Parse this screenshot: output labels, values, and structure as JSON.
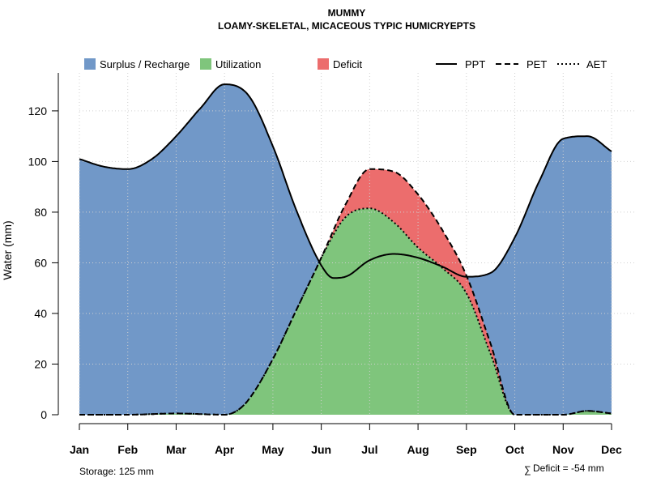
{
  "chart_data": {
    "type": "area",
    "title": "MUMMY",
    "subtitle": "LOAMY-SKELETAL, MICACEOUS TYPIC HUMICRYEPTS",
    "ylabel": "Water (mm)",
    "xlabel": "",
    "ylim": [
      0,
      135
    ],
    "yticks": [
      0,
      20,
      40,
      60,
      80,
      100,
      120
    ],
    "categories": [
      "Jan",
      "Feb",
      "Mar",
      "Apr",
      "May",
      "Jun",
      "Jul",
      "Aug",
      "Sep",
      "Oct",
      "Nov",
      "Dec"
    ],
    "grid": true,
    "series": [
      {
        "name": "PPT",
        "line_style": "solid",
        "x": [
          0,
          0.5,
          1,
          1.5,
          2,
          2.5,
          3,
          3.5,
          4,
          4.5,
          5,
          5.25,
          5.5,
          6,
          6.5,
          7,
          7.5,
          8,
          8.5,
          9,
          9.5,
          10,
          10.5,
          11
        ],
        "values": [
          101,
          98,
          97,
          101,
          110,
          121,
          130.5,
          126,
          106,
          80,
          59,
          54,
          54.5,
          61,
          63.5,
          62,
          58.5,
          54.5,
          56,
          70,
          92,
          109,
          110,
          104
        ]
      },
      {
        "name": "PET",
        "line_style": "dashed",
        "x": [
          0,
          1,
          2,
          3,
          3.25,
          3.5,
          4,
          4.5,
          5,
          5.5,
          6,
          6.5,
          7,
          7.5,
          8,
          8.5,
          9,
          9.5,
          10,
          10.5,
          11
        ],
        "values": [
          0,
          0,
          0.5,
          0,
          1.5,
          6,
          22,
          42,
          62,
          83,
          97,
          96,
          87,
          73,
          55,
          28,
          0,
          0,
          0,
          1.5,
          0.5
        ]
      },
      {
        "name": "AET",
        "line_style": "dotted",
        "x": [
          0,
          1,
          2,
          3,
          3.25,
          3.5,
          4,
          4.5,
          5,
          5.5,
          6,
          6.5,
          7,
          7.5,
          8,
          8.5,
          9,
          9.5,
          10,
          10.5,
          11
        ],
        "values": [
          0,
          0,
          0.5,
          0,
          1.5,
          6,
          22,
          42,
          62,
          78,
          81.5,
          76,
          66,
          58,
          48,
          24,
          0,
          0,
          0,
          1.5,
          0.5
        ]
      }
    ],
    "legend": {
      "placement": "top",
      "areas": [
        {
          "label": "Surplus / Recharge",
          "color": "#7198c8"
        },
        {
          "label": "Utilization",
          "color": "#7fc57c"
        },
        {
          "label": "Deficit",
          "color": "#ec6d6d"
        }
      ],
      "lines": [
        {
          "label": "PPT",
          "style": "solid"
        },
        {
          "label": "PET",
          "style": "dashed"
        },
        {
          "label": "AET",
          "style": "dotted"
        }
      ]
    },
    "annotations": {
      "storage": "Storage: 125 mm",
      "deficit_symbol": "∑",
      "deficit": "Deficit = -54 mm"
    }
  }
}
